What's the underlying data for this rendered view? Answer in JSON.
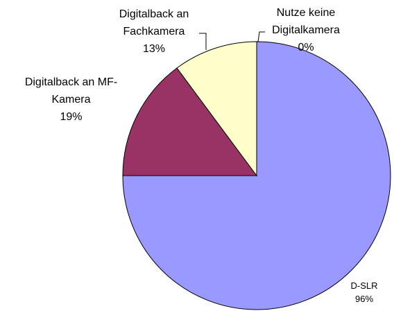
{
  "chart_data": {
    "type": "pie",
    "categories": [
      "D-SLR",
      "Digitalback an MF-Kamera",
      "Digitalback an Fachkamera",
      "Nutze keine Digitalkamera"
    ],
    "values": [
      96,
      19,
      13,
      0
    ],
    "value_labels": [
      "96%",
      "19%",
      "13%",
      "0%"
    ],
    "colors": [
      "#9999ff",
      "#993366",
      "#ffffcc",
      "#ffffff"
    ]
  }
}
